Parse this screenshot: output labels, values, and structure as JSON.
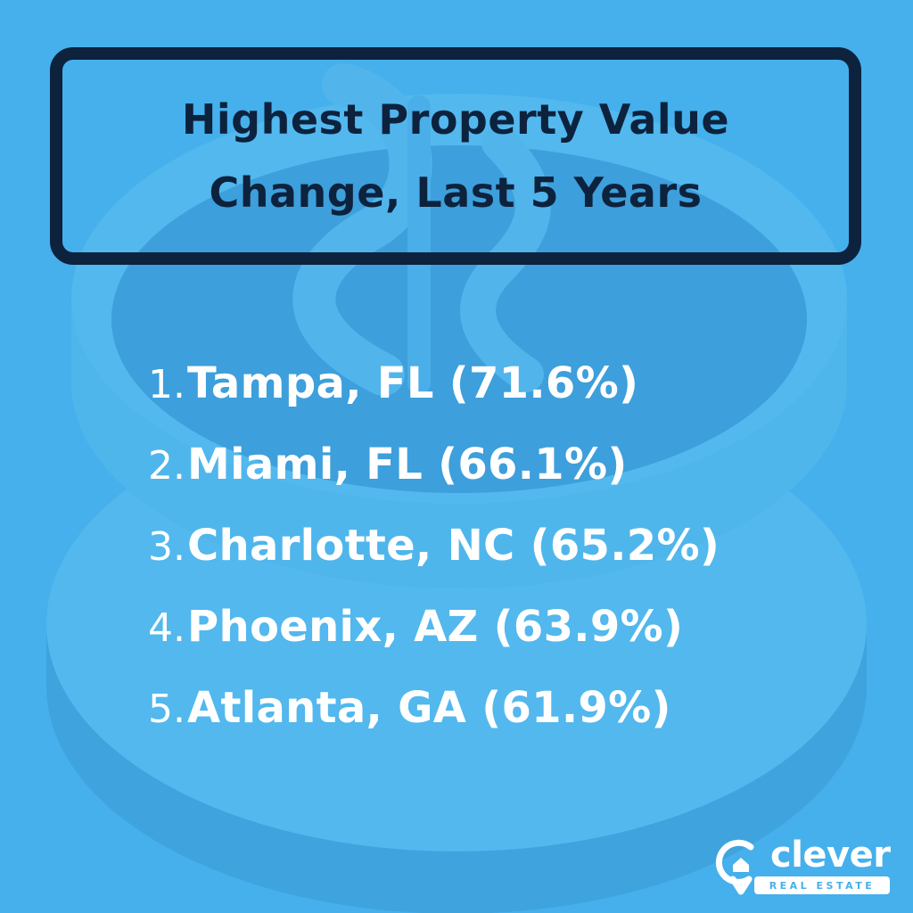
{
  "title": {
    "line1": "Highest Property Value",
    "line2": "Change, Last 5 Years"
  },
  "rankings": [
    {
      "num": "1.",
      "text": "Tampa, FL (71.6%)"
    },
    {
      "num": "2.",
      "text": "Miami, FL (66.1%)"
    },
    {
      "num": "3.",
      "text": "Charlotte, NC (65.2%)"
    },
    {
      "num": "4.",
      "text": "Phoenix, AZ (63.9%)"
    },
    {
      "num": "5.",
      "text": "Atlanta, GA (61.9%)"
    }
  ],
  "logo": {
    "word": "clever",
    "tagline": "REAL ESTATE"
  },
  "colors": {
    "background": "#45b0ec",
    "title_text": "#0d223d",
    "title_border": "#0d223d",
    "list_text": "#ffffff"
  },
  "icons": {
    "background": "coin-stack-icon",
    "logo": "location-pin-house-icon"
  }
}
